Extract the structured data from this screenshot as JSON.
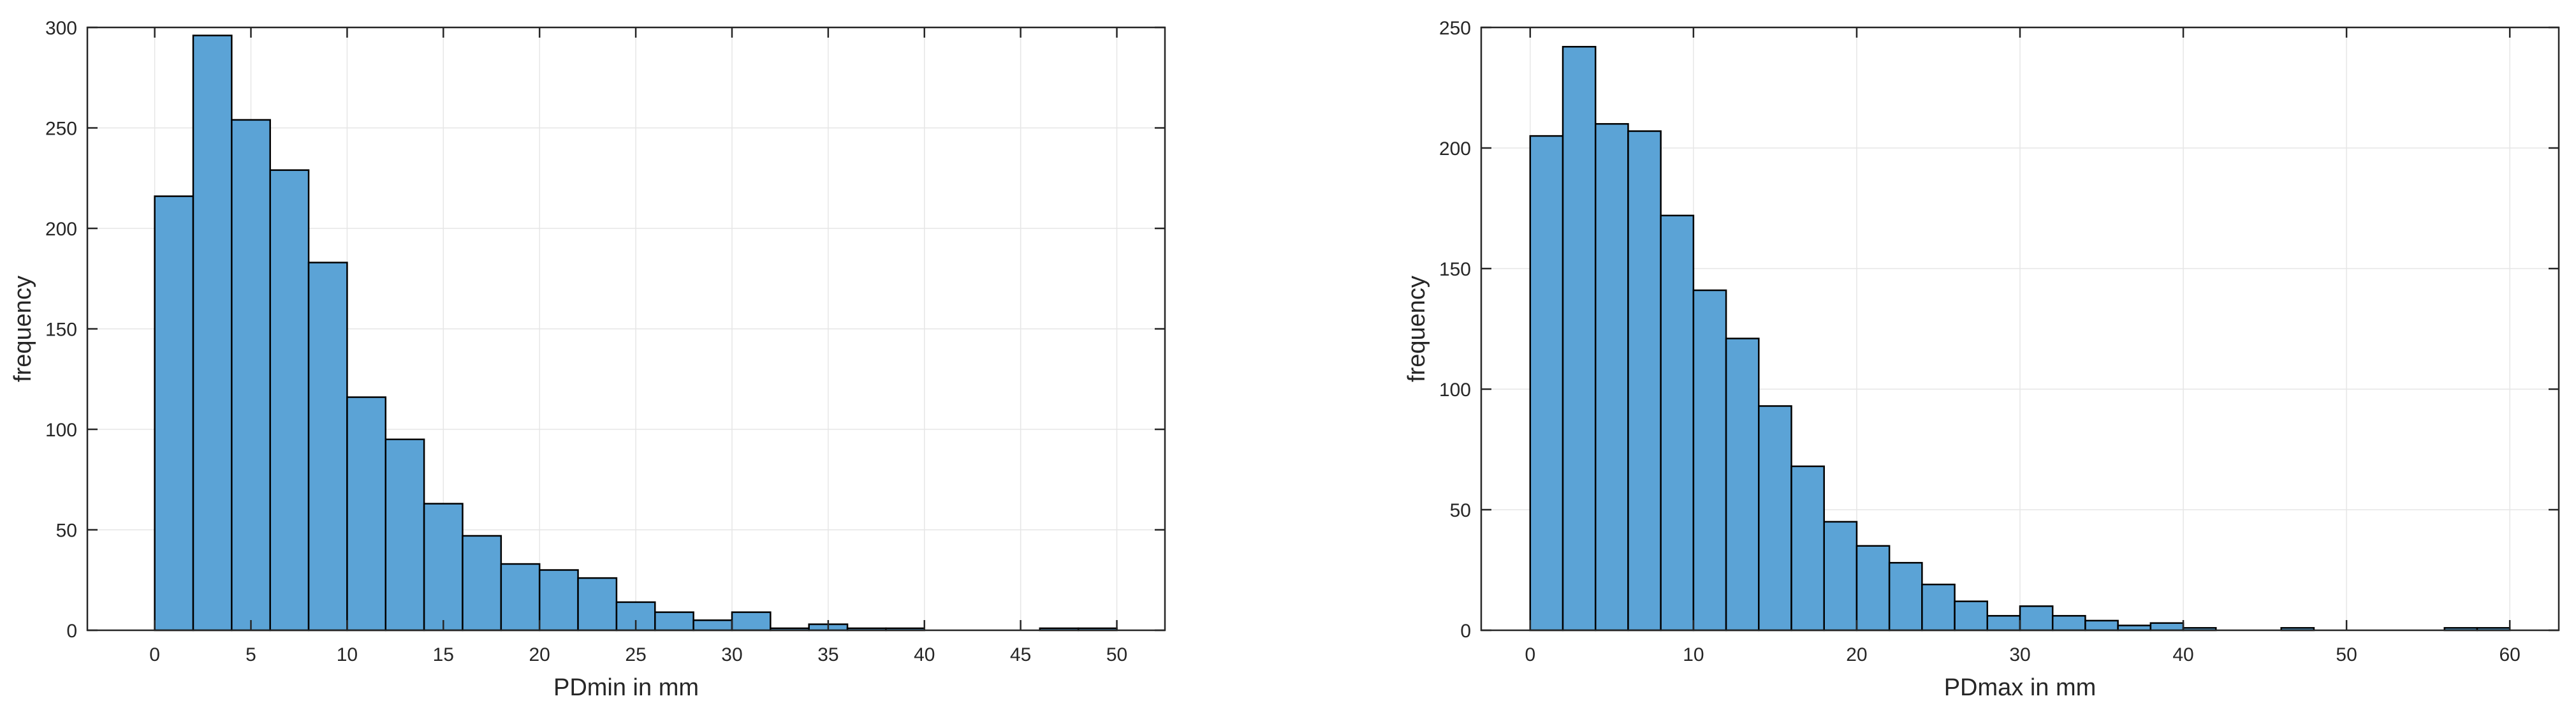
{
  "chart_data": [
    {
      "type": "bar",
      "xlabel": "PDmin in mm",
      "ylabel": "frequency",
      "xlim": [
        -3.5,
        52.5
      ],
      "ylim": [
        0,
        300
      ],
      "xticks": [
        0,
        5,
        10,
        15,
        20,
        25,
        30,
        35,
        40,
        45,
        50
      ],
      "yticks": [
        0,
        50,
        100,
        150,
        200,
        250,
        300
      ],
      "grid": true,
      "bar_color": "#5BA3D6",
      "edge_color": "#000000",
      "bins": [
        {
          "x0": 0,
          "x1": 2,
          "value": 216
        },
        {
          "x0": 2,
          "x1": 4,
          "value": 296
        },
        {
          "x0": 4,
          "x1": 6,
          "value": 254
        },
        {
          "x0": 6,
          "x1": 8,
          "value": 229
        },
        {
          "x0": 8,
          "x1": 10,
          "value": 183
        },
        {
          "x0": 10,
          "x1": 12,
          "value": 116
        },
        {
          "x0": 12,
          "x1": 14,
          "value": 95
        },
        {
          "x0": 14,
          "x1": 16,
          "value": 63
        },
        {
          "x0": 16,
          "x1": 18,
          "value": 47
        },
        {
          "x0": 18,
          "x1": 20,
          "value": 33
        },
        {
          "x0": 20,
          "x1": 22,
          "value": 30
        },
        {
          "x0": 22,
          "x1": 24,
          "value": 26
        },
        {
          "x0": 24,
          "x1": 26,
          "value": 14
        },
        {
          "x0": 26,
          "x1": 28,
          "value": 9
        },
        {
          "x0": 28,
          "x1": 30,
          "value": 5
        },
        {
          "x0": 30,
          "x1": 32,
          "value": 9
        },
        {
          "x0": 32,
          "x1": 34,
          "value": 1
        },
        {
          "x0": 34,
          "x1": 36,
          "value": 3
        },
        {
          "x0": 36,
          "x1": 38,
          "value": 1
        },
        {
          "x0": 38,
          "x1": 40,
          "value": 1
        },
        {
          "x0": 40,
          "x1": 42,
          "value": 0
        },
        {
          "x0": 42,
          "x1": 44,
          "value": 0
        },
        {
          "x0": 44,
          "x1": 46,
          "value": 0
        },
        {
          "x0": 46,
          "x1": 48,
          "value": 1
        },
        {
          "x0": 48,
          "x1": 50,
          "value": 1
        }
      ]
    },
    {
      "type": "bar",
      "xlabel": "PDmax in mm",
      "ylabel": "frequency",
      "xlim": [
        -3,
        63
      ],
      "ylim": [
        0,
        250
      ],
      "xticks": [
        0,
        10,
        20,
        30,
        40,
        50,
        60
      ],
      "yticks": [
        0,
        50,
        100,
        150,
        200,
        250
      ],
      "grid": true,
      "bar_color": "#5BA3D6",
      "edge_color": "#000000",
      "bins": [
        {
          "x0": 0,
          "x1": 2,
          "value": 205
        },
        {
          "x0": 2,
          "x1": 4,
          "value": 242
        },
        {
          "x0": 4,
          "x1": 6,
          "value": 210
        },
        {
          "x0": 6,
          "x1": 8,
          "value": 207
        },
        {
          "x0": 8,
          "x1": 10,
          "value": 172
        },
        {
          "x0": 10,
          "x1": 12,
          "value": 141
        },
        {
          "x0": 12,
          "x1": 14,
          "value": 121
        },
        {
          "x0": 14,
          "x1": 16,
          "value": 93
        },
        {
          "x0": 16,
          "x1": 18,
          "value": 68
        },
        {
          "x0": 18,
          "x1": 20,
          "value": 45
        },
        {
          "x0": 20,
          "x1": 22,
          "value": 35
        },
        {
          "x0": 22,
          "x1": 24,
          "value": 28
        },
        {
          "x0": 24,
          "x1": 26,
          "value": 19
        },
        {
          "x0": 26,
          "x1": 28,
          "value": 12
        },
        {
          "x0": 28,
          "x1": 30,
          "value": 6
        },
        {
          "x0": 30,
          "x1": 32,
          "value": 10
        },
        {
          "x0": 32,
          "x1": 34,
          "value": 6
        },
        {
          "x0": 34,
          "x1": 36,
          "value": 4
        },
        {
          "x0": 36,
          "x1": 38,
          "value": 2
        },
        {
          "x0": 38,
          "x1": 40,
          "value": 3
        },
        {
          "x0": 40,
          "x1": 42,
          "value": 1
        },
        {
          "x0": 46,
          "x1": 48,
          "value": 1
        },
        {
          "x0": 56,
          "x1": 58,
          "value": 1
        },
        {
          "x0": 58,
          "x1": 60,
          "value": 1
        }
      ]
    }
  ]
}
